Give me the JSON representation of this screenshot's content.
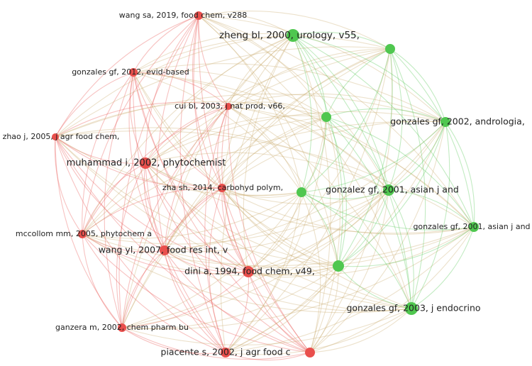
{
  "nodes": [
    {
      "label": "wang sa, 2019, food chem, v288",
      "color": "#e94f4c"
    },
    {
      "label": "gonzales gf, 2012, evid-based",
      "color": "#e94f4c"
    },
    {
      "label": "cui bl, 2003, j nat prod, v66,",
      "color": "#e94f4c"
    },
    {
      "label": "zhao j, 2005, j agr food chem,",
      "color": "#e94f4c"
    },
    {
      "label": "muhammad i, 2002, phytochemist",
      "color": "#e94f4c"
    },
    {
      "label": "zha sh, 2014, carbohyd polym,",
      "color": "#e94f4c"
    },
    {
      "label": "mccollom mm, 2005, phytochem a",
      "color": "#e94f4c"
    },
    {
      "label": "wang yl, 2007, food res int, v",
      "color": "#e94f4c"
    },
    {
      "label": "dini a, 1994, food chem, v49,",
      "color": "#e94f4c"
    },
    {
      "label": "ganzera m, 2002, chem pharm bu",
      "color": "#e94f4c"
    },
    {
      "label": "piacente s, 2002, j agr food c",
      "color": "#e94f4c"
    },
    {
      "color": "#e94f4c"
    },
    {
      "label": "zheng bl, 2000, urology, v55,",
      "color": "#4fc74f"
    },
    {
      "color": "#4fc74f"
    },
    {
      "color": "#4fc74f"
    },
    {
      "label": "gonzales gf, 2002, andrologia,",
      "color": "#4fc74f"
    },
    {
      "color": "#4fc74f"
    },
    {
      "label": "gonzalez gf, 2001, asian j and",
      "color": "#4fc74f"
    },
    {
      "label": "gonzales gf, 2001, asian j and",
      "color": "#4fc74f"
    },
    {
      "color": "#4fc74f"
    },
    {
      "label": "gonzales gf, 2003, j endocrino",
      "color": "#4fc74f"
    }
  ]
}
